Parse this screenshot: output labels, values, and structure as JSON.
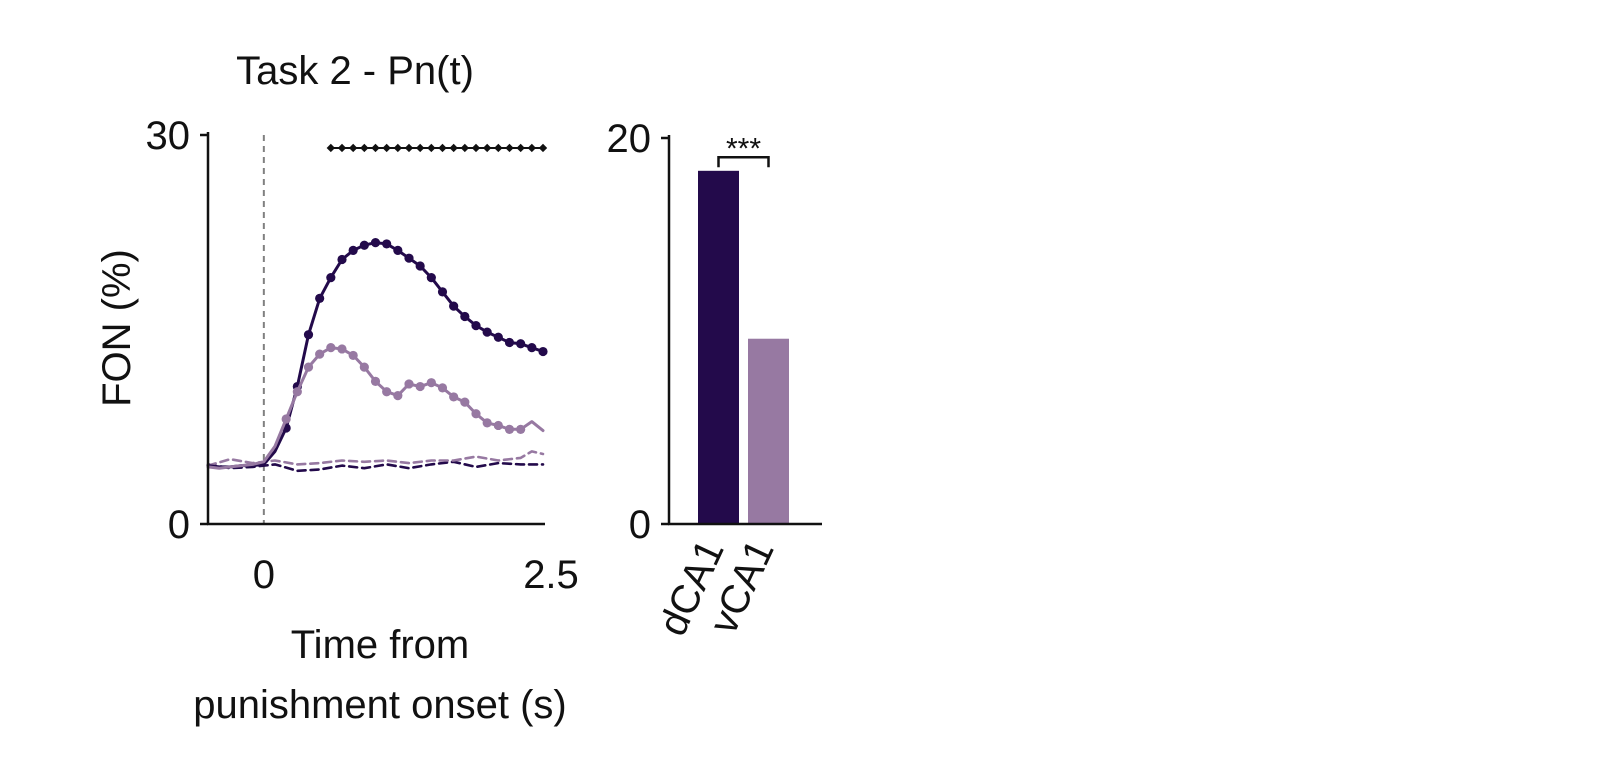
{
  "colors": {
    "dark": "#230a4b",
    "light": "#9779a2",
    "axis": "#111111",
    "onset_line": "#808080"
  },
  "chart_data": [
    {
      "type": "line",
      "title": "Task 2 - Pn(t)",
      "xlabel_lines": [
        "Time from",
        "punishment onset (s)"
      ],
      "ylabel": "FON (%)",
      "xlim": [
        -0.5,
        2.5
      ],
      "ylim": [
        0,
        30
      ],
      "xticks": [
        0,
        2.5
      ],
      "xtick_labels": [
        "0",
        "2.5"
      ],
      "yticks": [
        0,
        30
      ],
      "ytick_labels": [
        "0",
        "30"
      ],
      "onset_line_x": 0,
      "significance_marks_x": [
        0.6,
        0.7,
        0.8,
        0.9,
        1.0,
        1.1,
        1.2,
        1.3,
        1.4,
        1.5,
        1.6,
        1.7,
        1.8,
        1.9,
        2.0,
        2.1,
        2.2,
        2.3,
        2.4,
        2.5
      ],
      "significance_y": 29,
      "series": [
        {
          "color": "dark",
          "style": "solid",
          "x": [
            -0.5,
            -0.4,
            -0.3,
            -0.2,
            -0.1,
            0.0,
            0.1,
            0.2,
            0.3,
            0.4,
            0.5,
            0.6,
            0.7,
            0.8,
            0.9,
            1.0,
            1.1,
            1.2,
            1.3,
            1.4,
            1.5,
            1.6,
            1.7,
            1.8,
            1.9,
            2.0,
            2.1,
            2.2,
            2.3,
            2.4,
            2.5
          ],
          "y": [
            4.5,
            4.4,
            4.4,
            4.5,
            4.5,
            4.6,
            5.6,
            7.4,
            10.6,
            14.6,
            17.4,
            19.0,
            20.4,
            21.1,
            21.5,
            21.7,
            21.6,
            21.1,
            20.5,
            19.9,
            19.0,
            17.9,
            16.8,
            16.0,
            15.3,
            14.8,
            14.4,
            14.0,
            13.9,
            13.6,
            13.3
          ],
          "markers_from_x": 0.2
        },
        {
          "color": "light",
          "style": "solid",
          "x": [
            -0.5,
            -0.4,
            -0.3,
            -0.2,
            -0.1,
            0.0,
            0.1,
            0.2,
            0.3,
            0.4,
            0.5,
            0.6,
            0.7,
            0.8,
            0.9,
            1.0,
            1.1,
            1.2,
            1.3,
            1.4,
            1.5,
            1.6,
            1.7,
            1.8,
            1.9,
            2.0,
            2.1,
            2.2,
            2.3,
            2.4,
            2.5
          ],
          "y": [
            4.4,
            4.3,
            4.4,
            4.5,
            4.6,
            4.8,
            6.0,
            8.1,
            10.2,
            12.1,
            13.1,
            13.6,
            13.5,
            13.0,
            12.1,
            11.0,
            10.2,
            9.9,
            10.8,
            10.6,
            10.9,
            10.5,
            9.8,
            9.4,
            8.5,
            7.8,
            7.6,
            7.3,
            7.3,
            7.9,
            7.2
          ],
          "markers_from_x": 0.2,
          "markers_to_x": 2.3
        },
        {
          "color": "dark",
          "style": "dashed",
          "x": [
            -0.5,
            -0.3,
            -0.1,
            0.1,
            0.3,
            0.5,
            0.7,
            0.9,
            1.1,
            1.3,
            1.5,
            1.7,
            1.9,
            2.1,
            2.3,
            2.5
          ],
          "y": [
            4.6,
            4.3,
            4.4,
            4.6,
            4.1,
            4.2,
            4.5,
            4.3,
            4.6,
            4.3,
            4.6,
            4.8,
            4.4,
            4.7,
            4.6,
            4.6
          ]
        },
        {
          "color": "light",
          "style": "dashed",
          "x": [
            -0.5,
            -0.3,
            -0.1,
            0.1,
            0.3,
            0.5,
            0.7,
            0.9,
            1.1,
            1.3,
            1.5,
            1.7,
            1.9,
            2.1,
            2.3,
            2.4,
            2.5
          ],
          "y": [
            4.5,
            5.0,
            4.7,
            4.9,
            4.6,
            4.7,
            4.9,
            4.8,
            4.9,
            4.7,
            4.9,
            4.9,
            5.2,
            4.9,
            5.1,
            5.6,
            5.4
          ]
        }
      ]
    },
    {
      "type": "bar",
      "categories": [
        "dCA1",
        "vCA1"
      ],
      "values": [
        18.3,
        9.6
      ],
      "bar_colors": [
        "dark",
        "light"
      ],
      "ylim": [
        0,
        20
      ],
      "yticks": [
        0,
        20
      ],
      "ytick_labels": [
        "0",
        "20"
      ],
      "significance": {
        "label": "***",
        "between": [
          "dCA1",
          "vCA1"
        ],
        "y": 19.0
      }
    }
  ]
}
